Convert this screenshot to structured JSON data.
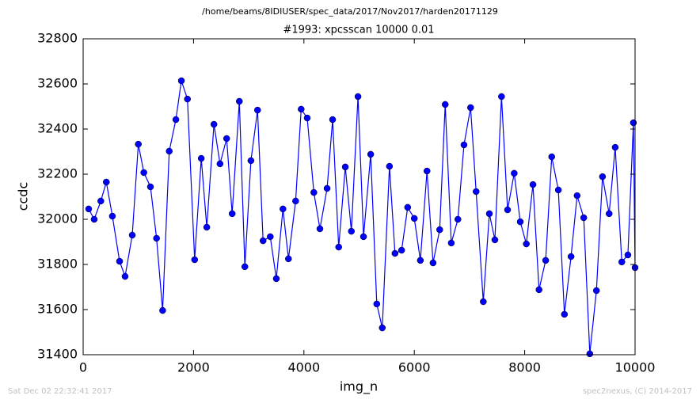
{
  "chart_data": {
    "type": "line",
    "suptitle": "/home/beams/8IDIUSER/spec_data/2017/Nov2017/harden20171129",
    "title": "#1993: xpcsscan 10000 0.01",
    "xlabel": "img_n",
    "ylabel": "ccdc",
    "footer_left": "Sat Dec 02 22:32:41 2017",
    "footer_right": "spec2nexus, (C) 2014-2017",
    "x": [
      100,
      200,
      320,
      420,
      530,
      660,
      760,
      890,
      1000,
      1100,
      1220,
      1330,
      1440,
      1560,
      1680,
      1780,
      1890,
      2020,
      2140,
      2240,
      2370,
      2480,
      2600,
      2700,
      2830,
      2930,
      3040,
      3160,
      3260,
      3390,
      3500,
      3620,
      3720,
      3850,
      3950,
      4060,
      4180,
      4290,
      4420,
      4520,
      4630,
      4750,
      4860,
      4980,
      5080,
      5210,
      5320,
      5420,
      5550,
      5650,
      5770,
      5880,
      6000,
      6110,
      6230,
      6340,
      6460,
      6560,
      6670,
      6790,
      6900,
      7020,
      7120,
      7250,
      7360,
      7460,
      7580,
      7690,
      7810,
      7920,
      8030,
      8150,
      8260,
      8380,
      8490,
      8610,
      8720,
      8840,
      8950,
      9070,
      9180,
      9300,
      9410,
      9530,
      9640,
      9760,
      9870,
      9970,
      10000
    ],
    "series": [
      {
        "name": "ccdc",
        "color": "#0000ff",
        "marker_color": "#0000ff",
        "values": [
          32046,
          32000,
          32081,
          32165,
          32014,
          31814,
          31747,
          31930,
          32333,
          32207,
          32144,
          31916,
          31596,
          32302,
          32442,
          32614,
          32533,
          31821,
          32270,
          31965,
          32421,
          32246,
          32358,
          32025,
          32523,
          31790,
          32260,
          32484,
          31905,
          31923,
          31737,
          32046,
          31825,
          32081,
          32488,
          32449,
          32119,
          31958,
          32137,
          32442,
          31877,
          32232,
          31947,
          32544,
          31923,
          32288,
          31625,
          31519,
          32235,
          31849,
          31863,
          32053,
          32004,
          31818,
          32214,
          31807,
          31954,
          32509,
          31895,
          32000,
          32330,
          32495,
          32123,
          31635,
          32025,
          31909,
          32544,
          32042,
          32204,
          31989,
          31891,
          32154,
          31688,
          31818,
          32277,
          32130,
          31579,
          31835,
          32105,
          32007,
          31404,
          31684,
          32189,
          32025,
          32319,
          31811,
          31842,
          32428,
          31786
        ]
      }
    ],
    "xlim": [
      0,
      10000
    ],
    "xticks": [
      0,
      2000,
      4000,
      6000,
      8000,
      10000
    ],
    "ylim": [
      31400,
      32800
    ],
    "yticks": [
      31400,
      31600,
      31800,
      32000,
      32200,
      32400,
      32600,
      32800
    ]
  }
}
